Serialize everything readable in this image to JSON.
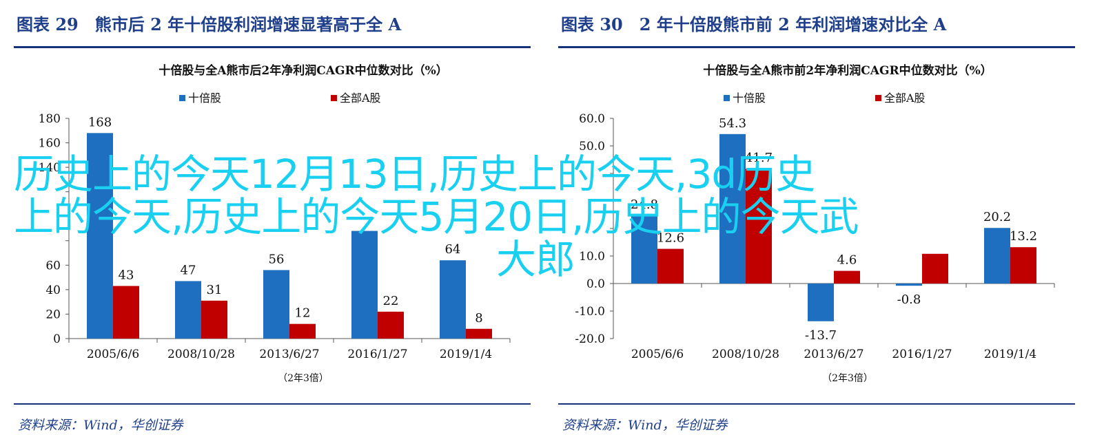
{
  "panels": [
    {
      "figure_title": "图表 29　熊市后 2 年十倍股利润增速显著高于全 A",
      "source": "资料来源：Wind，华创证券"
    },
    {
      "figure_title": "图表 30　2 年十倍股熊市前 2 年利润增速对比全 A",
      "source": "资料来源：Wind，华创证券"
    }
  ],
  "overlay_text": {
    "line1": "历史上的今天12月13日,历史上的今天,3d历史",
    "line2": "上的今天,历史上的今天5月20日,历史上的今天武",
    "line3": "大郎"
  },
  "colors": {
    "series_a": "#1f6fc1",
    "series_b": "#c00000",
    "rule": "#17307a",
    "title": "#1f3f8a",
    "overlay": "#19d0f0"
  },
  "chart_data": [
    {
      "type": "bar",
      "title": "十倍股与全A熊市后2年净利润CAGR中位数对比（%）",
      "xlabel": "（2年3倍）",
      "ylabel": "",
      "categories": [
        "2005/6/6",
        "2008/10/28",
        "2013/6/27",
        "2016/1/27",
        "2019/1/4"
      ],
      "series": [
        {
          "name": "十倍股",
          "values": [
            168,
            47,
            56,
            88,
            64
          ],
          "labels": [
            "168",
            "47",
            "56",
            "",
            "64"
          ]
        },
        {
          "name": "全部A股",
          "values": [
            43,
            31,
            12,
            22,
            8
          ],
          "labels": [
            "43",
            "31",
            "12",
            "22",
            "8"
          ]
        }
      ],
      "ylim": [
        0,
        180
      ],
      "yticks": [
        0,
        20,
        40,
        60,
        80,
        100,
        120,
        140,
        160,
        180
      ],
      "ytick_labels": [
        "0",
        "20",
        "40",
        "60",
        "",
        "",
        "",
        "140",
        "160",
        "180"
      ],
      "grid": false,
      "legend": "top-center"
    },
    {
      "type": "bar",
      "title": "十倍股与全A熊市前2年净利润CAGR中位数对比（%）",
      "xlabel": "（2年3倍）",
      "ylabel": "",
      "categories": [
        "2005/6/6",
        "2008/10/28",
        "2013/6/27",
        "2016/1/27",
        "2019/1/4"
      ],
      "series": [
        {
          "name": "十倍股",
          "values": [
            24.8,
            54.3,
            -13.7,
            -0.8,
            20.2
          ],
          "labels": [
            "24.8",
            "54.3",
            "-13.7",
            "-0.8",
            "20.2"
          ]
        },
        {
          "name": "全部A股",
          "values": [
            12.6,
            41.7,
            4.6,
            10.8,
            13.2
          ],
          "labels": [
            "12.6",
            "41.7",
            "4.6",
            "",
            "13.2"
          ]
        }
      ],
      "ylim": [
        -20,
        60
      ],
      "yticks": [
        -20,
        -10,
        0,
        10,
        20,
        30,
        40,
        50,
        60
      ],
      "ytick_labels": [
        "-20.0",
        "-10.0",
        "0.0",
        "10.0",
        "",
        "",
        "",
        "50.0",
        "60.0"
      ],
      "grid": false,
      "legend": "top-center"
    }
  ]
}
